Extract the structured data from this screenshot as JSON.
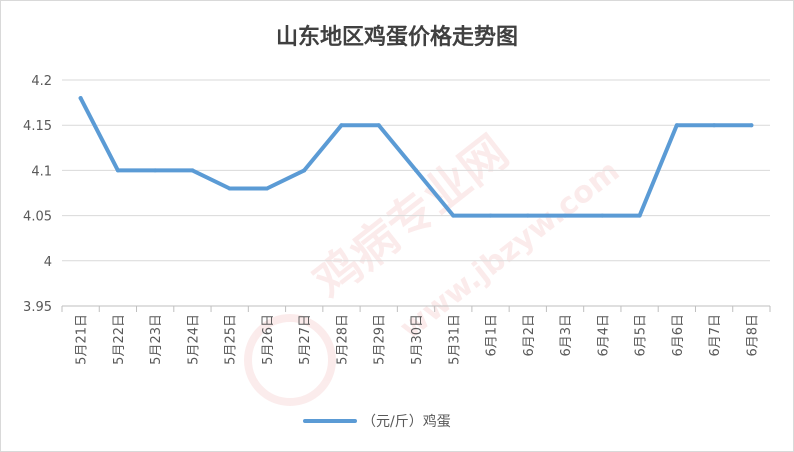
{
  "chart_data": {
    "type": "line",
    "title": "山东地区鸡蛋价格走势图",
    "categories": [
      "5月21日",
      "5月22日",
      "5月23日",
      "5月24日",
      "5月25日",
      "5月26日",
      "5月27日",
      "5月28日",
      "5月29日",
      "5月30日",
      "5月31日",
      "6月1日",
      "6月2日",
      "6月3日",
      "6月4日",
      "6月5日",
      "6月6日",
      "6月7日",
      "6月8日"
    ],
    "series": [
      {
        "name": "（元/斤）鸡蛋",
        "values": [
          4.18,
          4.1,
          4.1,
          4.1,
          4.08,
          4.08,
          4.1,
          4.15,
          4.15,
          4.1,
          4.05,
          4.05,
          4.05,
          4.05,
          4.05,
          4.05,
          4.15,
          4.15,
          4.15
        ]
      }
    ],
    "y_ticks": [
      "4.2",
      "4.15",
      "4.1",
      "4.05",
      "4",
      "3.95"
    ],
    "ylim": [
      3.95,
      4.2
    ],
    "xlabel": "",
    "ylabel": "",
    "grid": true,
    "legend": "bottom",
    "colors": {
      "line": "#5b9bd5",
      "grid": "#d9d9d9",
      "axis": "#bfbfbf"
    }
  },
  "watermark": {
    "main": "鸡病专业网",
    "url": "www.jbzyw.com",
    "color": "#e06060"
  }
}
